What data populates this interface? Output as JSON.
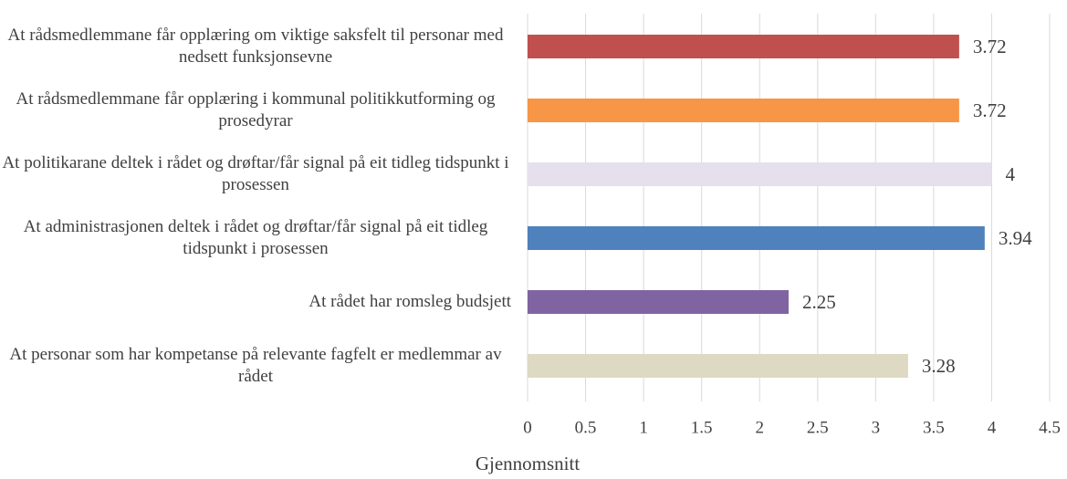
{
  "chart_data": {
    "type": "bar",
    "orientation": "horizontal",
    "categories": [
      "At rådsmedlemmane får opplæring om viktige saksfelt til personar med nedsett funksjonsevne",
      "At rådsmedlemmane får opplæring i kommunal politikkutforming og prosedyrar",
      "At politikarane deltek i rådet og drøftar/får signal på eit tidleg tidspunkt i prosessen",
      "At administrasjonen deltek i rådet og drøftar/får signal på eit tidleg tidspunkt i prosessen",
      "At rådet har romsleg budsjett",
      "At personar som har kompetanse på relevante fagfelt er medlemmar av rådet"
    ],
    "values": [
      3.72,
      3.72,
      4,
      3.94,
      2.25,
      3.28
    ],
    "colors": [
      "#c0504d",
      "#f79646",
      "#e6e0ec",
      "#4f81bd",
      "#8064a2",
      "#ddd9c3"
    ],
    "xlabel": "Gjennomsnitt",
    "xlim": [
      0,
      4.5
    ],
    "xticks": [
      0,
      0.5,
      1,
      1.5,
      2,
      2.5,
      3,
      3.5,
      4,
      4.5
    ],
    "grid": true
  }
}
